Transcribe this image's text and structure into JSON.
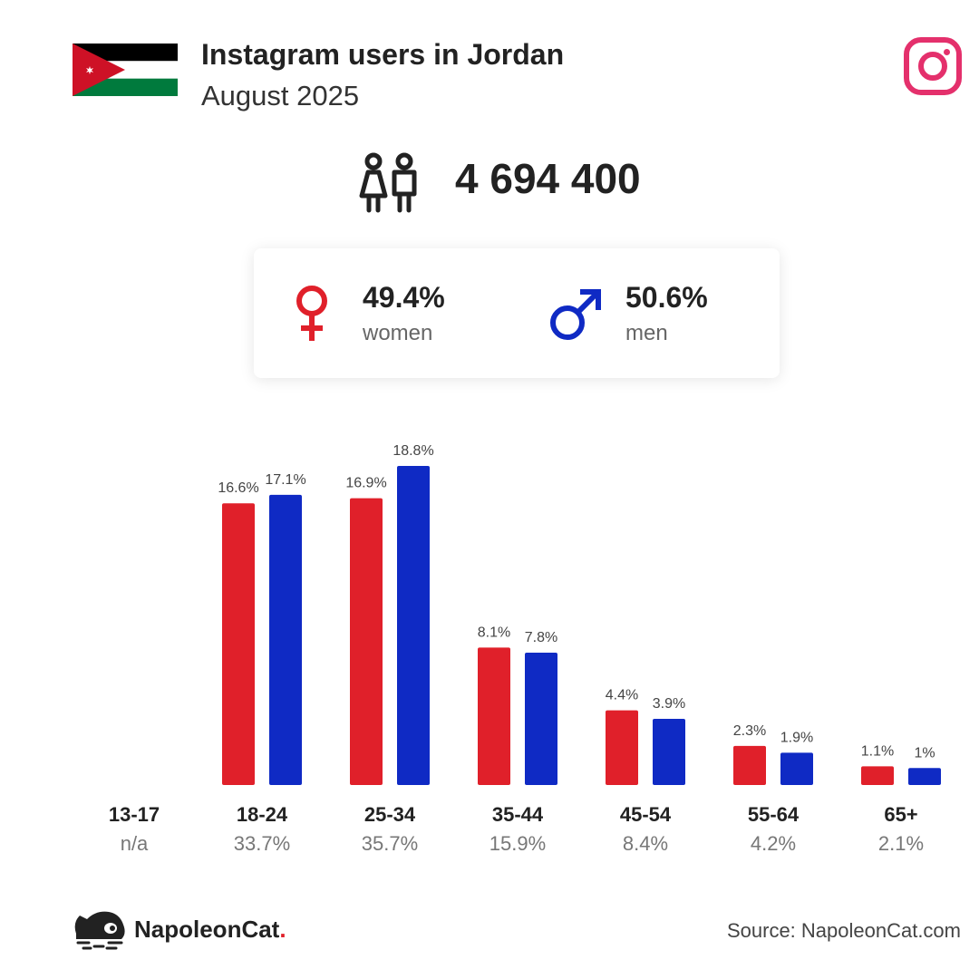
{
  "header": {
    "title": "Instagram users in Jordan",
    "subtitle": "August 2025"
  },
  "total": {
    "value": "4 694 400",
    "icon": "users-icon"
  },
  "gender": {
    "women": {
      "percent": "49.4%",
      "label": "women",
      "icon": "female-symbol-icon",
      "color": "#e0202a"
    },
    "men": {
      "percent": "50.6%",
      "label": "men",
      "icon": "male-symbol-icon",
      "color": "#0f2ac4"
    }
  },
  "chart_data": {
    "type": "bar",
    "categories": [
      "13-17",
      "18-24",
      "25-34",
      "35-44",
      "45-54",
      "55-64",
      "65+"
    ],
    "category_shares": [
      "n/a",
      "33.7%",
      "35.7%",
      "15.9%",
      "8.4%",
      "4.2%",
      "2.1%"
    ],
    "series": [
      {
        "color": "#e0202a",
        "values": [
          null,
          16.6,
          16.9,
          8.1,
          4.4,
          2.3,
          1.1
        ],
        "labels": [
          "",
          "16.6%",
          "16.9%",
          "8.1%",
          "4.4%",
          "2.3%",
          "1.1%"
        ]
      },
      {
        "color": "#0f2ac4",
        "values": [
          null,
          17.1,
          18.8,
          7.8,
          3.9,
          1.9,
          1.0
        ],
        "labels": [
          "",
          "17.1%",
          "18.8%",
          "7.8%",
          "3.9%",
          "1.9%",
          "1%"
        ]
      }
    ],
    "ylim": [
      0,
      18.8
    ],
    "grid": false
  },
  "footer": {
    "brand_name": "NapoleonCat",
    "brand_dot": ".",
    "source": "Source: NapoleonCat.com"
  },
  "colors": {
    "women": "#e0202a",
    "men": "#0f2ac4",
    "instagram": "#e4306c"
  }
}
